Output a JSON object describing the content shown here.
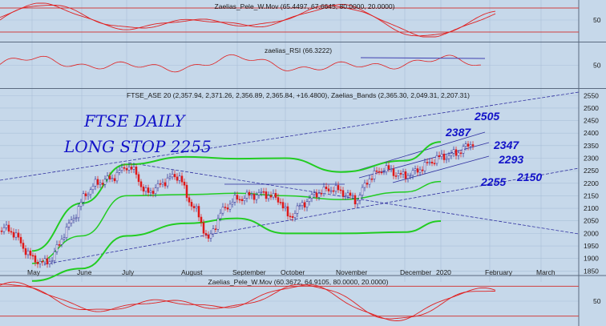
{
  "chart_data": [
    {
      "type": "line",
      "pane": "top-oscillator",
      "title": "Zaelias_Pele_W.Mov (65.4497, 67.6645, 80.0000, 20.0000)",
      "y_ticks": [
        50
      ],
      "reference_levels": [
        80,
        20
      ],
      "grid": true
    },
    {
      "type": "line",
      "pane": "rsi",
      "title": "zaelias_RSI (66.3222)",
      "y_ticks": [
        50
      ],
      "grid": true
    },
    {
      "type": "candlestick",
      "pane": "price",
      "title": "FTSE_ASE 20 (2,357.94, 2,371.26, 2,356.89, 2,365.84, +16.4800), Zaelias_Bands (2,365.30, 2,049.31, 2,207.31)",
      "y_ticks": [
        1850,
        1900,
        1950,
        2000,
        2050,
        2100,
        2150,
        2200,
        2250,
        2300,
        2350,
        2400,
        2450,
        2500,
        2550
      ],
      "ylim": [
        1835,
        2570
      ],
      "x_months": [
        "May",
        "June",
        "July",
        "August",
        "September",
        "October",
        "November",
        "December",
        "2020",
        "February",
        "March"
      ],
      "grid": true,
      "bands": {
        "upper": [
          [
            "May",
            1930
          ],
          [
            "June",
            2120
          ],
          [
            "July",
            2275
          ],
          [
            "August",
            2305
          ],
          [
            "September",
            2298
          ],
          [
            "October",
            2300
          ],
          [
            "November",
            2245
          ],
          [
            "December",
            2290
          ],
          [
            "2020",
            2365
          ]
        ],
        "middle": [
          [
            "May",
            1880
          ],
          [
            "June",
            1990
          ],
          [
            "July",
            2150
          ],
          [
            "August",
            2155
          ],
          [
            "September",
            2160
          ],
          [
            "October",
            2150
          ],
          [
            "November",
            2135
          ],
          [
            "December",
            2165
          ],
          [
            "2020",
            2207
          ]
        ],
        "lower": [
          [
            "May",
            1810
          ],
          [
            "June",
            1860
          ],
          [
            "July",
            1990
          ],
          [
            "August",
            2040
          ],
          [
            "September",
            2060
          ],
          [
            "October",
            2000
          ],
          [
            "November",
            2000
          ],
          [
            "December",
            2005
          ],
          [
            "2020",
            2049
          ]
        ]
      },
      "annotations": {
        "title_line1": "FTSE DAILY",
        "title_line2": "LONG STOP 2255",
        "levels": [
          "2505",
          "2387",
          "2347",
          "2293",
          "2255",
          "2150"
        ]
      }
    },
    {
      "type": "line",
      "pane": "bottom-oscillator",
      "title": "Zaelias_Pele_W.Mov (60.3672, 64.9105, 80.0000, 20.0000)",
      "y_ticks": [
        50
      ],
      "reference_levels": [
        80,
        20
      ],
      "grid": true
    }
  ],
  "colors": {
    "background": "#c6d8ea",
    "grid": "#a9c0d8",
    "oscillator_line": "#e02020",
    "oscillator_ref": "#d04040",
    "rsi_trend": "#4040b0",
    "band": "#22cc22",
    "trendline": "#3030a0",
    "candle_up": "#2a2a90",
    "candle_down": "#e01818",
    "annotation": "#1212c8"
  }
}
